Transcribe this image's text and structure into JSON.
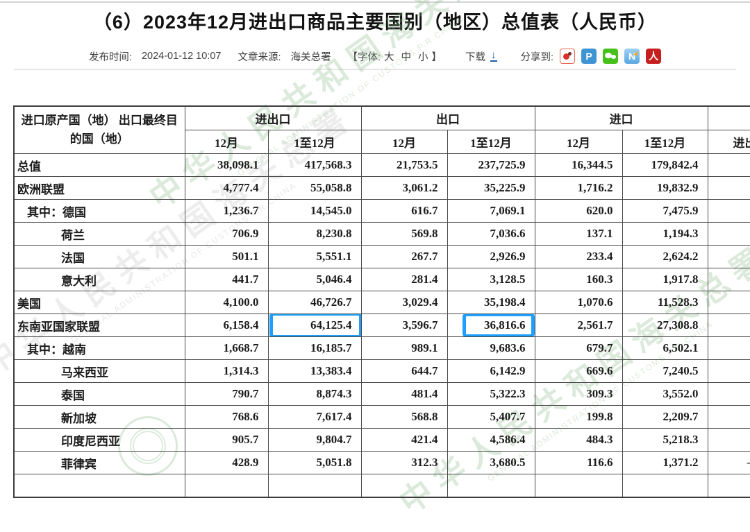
{
  "page": {
    "title": "（6）2023年12月进出口商品主要国别（地区）总值表（人民币）"
  },
  "meta": {
    "publish_label": "发布时间:",
    "publish_time": "2024-01-12 10:07",
    "source_label": "文章来源:",
    "source_name": "海关总署",
    "font_open": "【字体:",
    "font_sizes": [
      "大",
      "中",
      "小"
    ],
    "font_close": "】",
    "download_label": "下载",
    "download_icon": "download-arrow-icon",
    "download_color": "#1d5da8",
    "share_label": "分享到:",
    "share_icons": [
      {
        "name": "sina-weibo-icon",
        "glyph": ""
      },
      {
        "name": "tencent-weibo-icon",
        "glyph": "P"
      },
      {
        "name": "wechat-icon",
        "glyph": ""
      },
      {
        "name": "news-n-icon",
        "glyph": "N"
      },
      {
        "name": "people-daily-icon",
        "glyph": "人"
      }
    ]
  },
  "watermark": {
    "cn_text": "中华人民共和国海关总署",
    "cn_text_short": "海关总署",
    "en_text": "GENERAL ADMINISTRATION OF CUSTOMS P.R.CHINA"
  },
  "table": {
    "highlight_color": "#1e9fff",
    "header": {
      "col_country": "进口原产国（地） 出口最终目的国（地）",
      "groups": [
        {
          "label": "进出口"
        },
        {
          "label": "出口"
        },
        {
          "label": "进口"
        }
      ],
      "sub": [
        "12月",
        "1至12月",
        "12月",
        "1至12月",
        "12月",
        "1至12月"
      ],
      "partial_col_label": "进出"
    },
    "rows": [
      {
        "label": "总值",
        "indent": 0,
        "values": [
          "38,098.1",
          "417,568.3",
          "21,753.5",
          "237,725.9",
          "16,344.5",
          "179,842.4"
        ],
        "extra": ""
      },
      {
        "label": "欧洲联盟",
        "indent": 0,
        "values": [
          "4,777.4",
          "55,058.8",
          "3,061.2",
          "35,225.9",
          "1,716.2",
          "19,832.9"
        ],
        "extra": ""
      },
      {
        "label": "其中：德国",
        "indent": 1,
        "values": [
          "1,236.7",
          "14,545.0",
          "616.7",
          "7,069.1",
          "620.0",
          "7,475.9"
        ],
        "extra": ""
      },
      {
        "label": "荷兰",
        "indent": 2,
        "values": [
          "706.9",
          "8,230.8",
          "569.8",
          "7,036.6",
          "137.1",
          "1,194.3"
        ],
        "extra": ""
      },
      {
        "label": "法国",
        "indent": 2,
        "values": [
          "501.1",
          "5,551.1",
          "267.7",
          "2,926.9",
          "233.4",
          "2,624.2"
        ],
        "extra": ""
      },
      {
        "label": "意大利",
        "indent": 2,
        "values": [
          "441.7",
          "5,046.4",
          "281.4",
          "3,128.5",
          "160.3",
          "1,917.8"
        ],
        "extra": ""
      },
      {
        "label": "美国",
        "indent": 0,
        "values": [
          "4,100.0",
          "46,726.7",
          "3,029.4",
          "35,198.4",
          "1,070.6",
          "11,528.3"
        ],
        "extra": ""
      },
      {
        "label": "东南亚国家联盟",
        "indent": 0,
        "values": [
          "6,158.4",
          "64,125.4",
          "3,596.7",
          "36,816.6",
          "2,561.7",
          "27,308.8"
        ],
        "extra": "",
        "highlight": [
          {
            "col": 1,
            "style": "wide"
          },
          {
            "col": 3,
            "style": "tight"
          }
        ]
      },
      {
        "label": "其中：越南",
        "indent": 1,
        "values": [
          "1,668.7",
          "16,185.7",
          "989.1",
          "9,683.6",
          "679.7",
          "6,502.1"
        ],
        "extra": ""
      },
      {
        "label": "马来西亚",
        "indent": 2,
        "values": [
          "1,314.3",
          "13,383.4",
          "644.7",
          "6,142.9",
          "669.6",
          "7,240.5"
        ],
        "extra": ""
      },
      {
        "label": "泰国",
        "indent": 2,
        "values": [
          "790.7",
          "8,874.3",
          "481.4",
          "5,322.3",
          "309.3",
          "3,552.0"
        ],
        "extra": ""
      },
      {
        "label": "新加坡",
        "indent": 2,
        "values": [
          "768.6",
          "7,617.4",
          "568.8",
          "5,407.7",
          "199.8",
          "2,209.7"
        ],
        "extra": ""
      },
      {
        "label": "印度尼西亚",
        "indent": 2,
        "values": [
          "905.7",
          "9,804.7",
          "421.4",
          "4,586.4",
          "484.3",
          "5,218.3"
        ],
        "extra": ""
      },
      {
        "label": "菲律宾",
        "indent": 2,
        "values": [
          "428.9",
          "5,051.8",
          "312.3",
          "3,680.5",
          "116.6",
          "1,371.2"
        ],
        "extra": "—"
      },
      {
        "label": "",
        "indent": 0,
        "values": [
          "",
          "",
          "",
          "",
          "",
          ""
        ],
        "extra": ""
      }
    ]
  }
}
